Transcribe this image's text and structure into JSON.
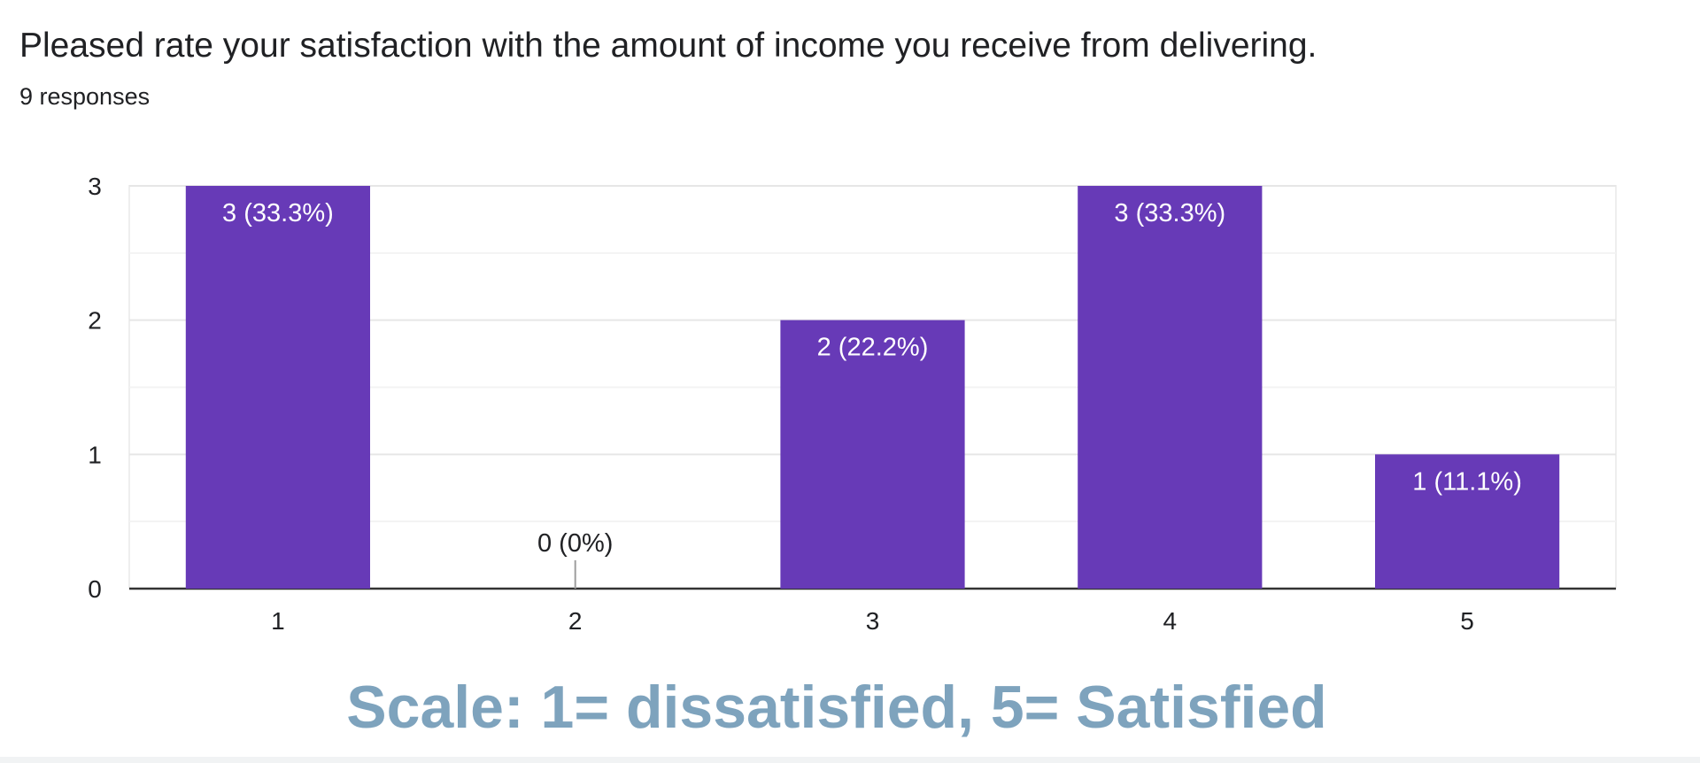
{
  "question": {
    "title": "Pleased rate your satisfaction with the amount of income you receive from delivering.",
    "responses": "9 responses"
  },
  "scale_note": "Scale: 1= dissatisfied, 5= Satisfied",
  "chart_data": {
    "type": "bar",
    "categories": [
      "1",
      "2",
      "3",
      "4",
      "5"
    ],
    "values": [
      3,
      0,
      2,
      3,
      1
    ],
    "data_labels": [
      "3 (33.3%)",
      "0 (0%)",
      "2 (22.2%)",
      "3 (33.3%)",
      "1 (11.1%)"
    ],
    "yticks": [
      "0",
      "1",
      "2",
      "3"
    ],
    "ylim": [
      0,
      3
    ],
    "minor_gridlines": true,
    "grid": true,
    "legend": "none",
    "bar_color": "#673ab7",
    "label_inside_color": "#ffffff",
    "label_outside_color": "#202124"
  }
}
